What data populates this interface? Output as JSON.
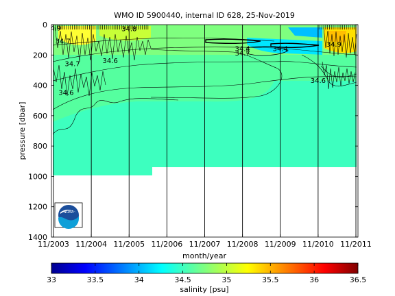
{
  "chart_data": [
    {
      "type": "contour",
      "title": "WMO ID 5900440, internal ID 628, 25-Nov-2019",
      "xlabel": "month/year",
      "ylabel": "pressure [dbar]",
      "x_tick_labels": [
        "11/2003",
        "11/2004",
        "11/2005",
        "11/2006",
        "11/2007",
        "11/2008",
        "11/2009",
        "11/2010",
        "11/2011"
      ],
      "y_tick_labels": [
        "0",
        "200",
        "400",
        "600",
        "800",
        "1000",
        "1200",
        "1400"
      ],
      "ylim": [
        1400,
        0
      ],
      "y_reversed": true,
      "grid": "vertical lines at yearly ticks",
      "profile_depth_segments": [
        {
          "from": "11/2003",
          "to": "01/2006",
          "max_pressure": 1000
        },
        {
          "from": "01/2006",
          "to": "11/2010",
          "max_pressure": 940
        }
      ],
      "contour_labels": [
        {
          "text": "34.8",
          "x": "11/2005",
          "y": 30
        },
        {
          "text": "34.9",
          "x": "11/2003",
          "y": 25
        },
        {
          "text": "34.7",
          "x": "02/2004",
          "y": 110
        },
        {
          "text": "34.7",
          "x": "05/2004",
          "y": 260
        },
        {
          "text": "34.6",
          "x": "05/2005",
          "y": 240
        },
        {
          "text": "34.6",
          "x": "03/2004",
          "y": 450
        },
        {
          "text": "34.7",
          "x": "11/2008",
          "y": 190
        },
        {
          "text": "34.4",
          "x": "11/2008",
          "y": 160
        },
        {
          "text": "34.4",
          "x": "11/2009",
          "y": 160
        },
        {
          "text": "34.6",
          "x": "11/2010",
          "y": 370
        },
        {
          "text": "34.9",
          "x": "04/2011",
          "y": 130
        }
      ],
      "color_scale": {
        "label": "salinity [psu]",
        "range": [
          33,
          36.5
        ],
        "tick_labels": [
          "33",
          "33.5",
          "34",
          "34.5",
          "35",
          "35.5",
          "36",
          "36.5"
        ],
        "colormap": "jet"
      },
      "logo": "NOAA"
    }
  ]
}
